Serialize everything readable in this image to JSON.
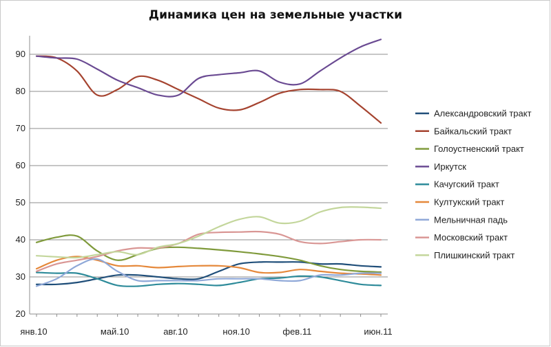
{
  "chart_data": {
    "type": "line",
    "title": "Динамика цен на земельные участки",
    "xlabel": "",
    "ylabel": "",
    "ylim": [
      20,
      95
    ],
    "yticks": [
      20,
      30,
      40,
      50,
      60,
      70,
      80,
      90
    ],
    "x_tick_labels": [
      "янв.10",
      "май.10",
      "авг.10",
      "ноя.10",
      "фев.11",
      "июн.11"
    ],
    "x_tick_index": [
      0,
      4,
      7,
      10,
      13,
      17
    ],
    "grid": "horizontal",
    "legend_position": "right",
    "series": [
      {
        "name": "Александровский тракт",
        "color": "#1f4e79",
        "values": [
          28,
          28,
          28.5,
          29.5,
          30.5,
          30.5,
          30,
          29.5,
          29.5,
          31.5,
          33.5,
          34,
          34,
          34,
          33.5,
          33.5,
          33,
          32.7
        ]
      },
      {
        "name": "Байкальский тракт",
        "color": "#a5432f",
        "values": [
          89.5,
          89,
          85.5,
          79,
          80.5,
          84,
          83,
          80.5,
          78,
          75.5,
          75,
          77,
          79.5,
          80.5,
          80.5,
          80,
          76,
          71.5
        ]
      },
      {
        "name": "Голоустненский тракт",
        "color": "#7f9a3b",
        "values": [
          39.3,
          40.7,
          41,
          37,
          34.5,
          36,
          37.7,
          38,
          37.7,
          37.3,
          36.8,
          36.2,
          35.5,
          34.5,
          33,
          32,
          31.5,
          31.3
        ]
      },
      {
        "name": "Иркутск",
        "color": "#6a4a92",
        "values": [
          89.5,
          89,
          88.7,
          86,
          83,
          81,
          79,
          79,
          83.5,
          84.5,
          85,
          85.5,
          82.5,
          82,
          85.5,
          89,
          92,
          94
        ]
      },
      {
        "name": "Качугский тракт",
        "color": "#2e8b9a",
        "values": [
          31.2,
          31,
          31,
          29.5,
          27.7,
          27.5,
          28,
          28.2,
          28,
          27.7,
          28.5,
          29.5,
          29.7,
          30.2,
          30,
          29,
          28,
          27.7
        ]
      },
      {
        "name": "Култукский тракт",
        "color": "#e5883a",
        "values": [
          32.2,
          34.5,
          35.5,
          34.5,
          33,
          33,
          32.5,
          32.8,
          33,
          33,
          32.5,
          31.2,
          31.2,
          32,
          31.5,
          31,
          30.8,
          30.5
        ]
      },
      {
        "name": "Мельничная падь",
        "color": "#8fa8d8",
        "values": [
          27.5,
          29.5,
          33,
          34.8,
          31.5,
          29,
          29,
          29,
          29,
          29.5,
          29.5,
          29.5,
          29,
          29,
          30.5,
          30.5,
          31,
          31
        ]
      },
      {
        "name": "Московский тракт",
        "color": "#d99694",
        "values": [
          31.5,
          33.5,
          34.5,
          35.5,
          37,
          37.8,
          37.8,
          39,
          41.5,
          42,
          42.1,
          42.2,
          41.5,
          39.5,
          39,
          39.5,
          40,
          40
        ]
      },
      {
        "name": "Плишкинский тракт",
        "color": "#c3d69b",
        "values": [
          35.7,
          35.4,
          35.2,
          36,
          36.8,
          36,
          38,
          39,
          41,
          43.5,
          45.5,
          46.2,
          44.5,
          45,
          47.5,
          48.7,
          48.8,
          48.5
        ]
      }
    ]
  }
}
